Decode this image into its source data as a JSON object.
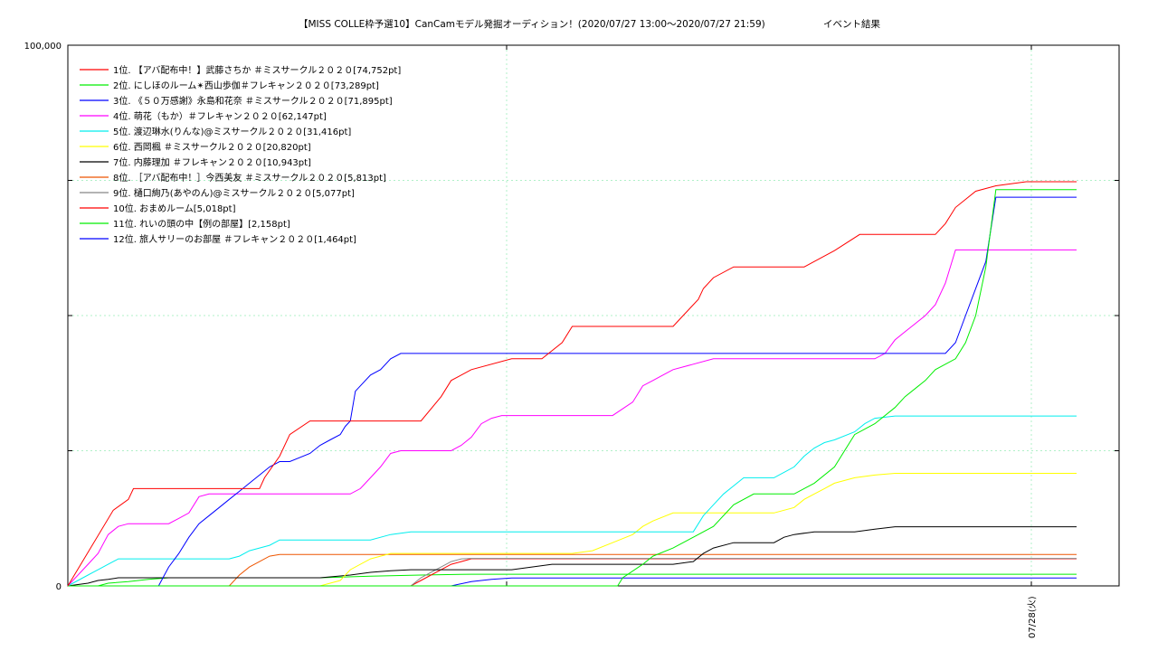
{
  "chart_data": {
    "type": "line",
    "title": "【MISS COLLE枠予選10】CanCamモデル発掘オーディション！(2020/07/27 13:00～2020/07/27 21:59)",
    "subtitle": "イベント結果",
    "xlabel": "",
    "ylabel": "",
    "ylim": [
      0,
      100000
    ],
    "y_tick_labels": [
      "0",
      "100,000"
    ],
    "x_tick_labels": [
      "07/28(火)"
    ],
    "grid": true,
    "legend_position": "top-left",
    "series": [
      {
        "name": "1位. 【アバ配布中！】武藤さちか ＃ミスサークル２０２０[74,752pt]",
        "color": "#ff0000",
        "points": [
          [
            0,
            0
          ],
          [
            0.045,
            14000
          ],
          [
            0.06,
            16000
          ],
          [
            0.065,
            18000
          ],
          [
            0.12,
            18000
          ],
          [
            0.16,
            18000
          ],
          [
            0.19,
            18000
          ],
          [
            0.195,
            20000
          ],
          [
            0.21,
            24000
          ],
          [
            0.22,
            28000
          ],
          [
            0.24,
            30500
          ],
          [
            0.26,
            30500
          ],
          [
            0.35,
            30500
          ],
          [
            0.37,
            35000
          ],
          [
            0.38,
            38000
          ],
          [
            0.4,
            40000
          ],
          [
            0.44,
            42000
          ],
          [
            0.47,
            42000
          ],
          [
            0.49,
            45000
          ],
          [
            0.5,
            48000
          ],
          [
            0.6,
            48000
          ],
          [
            0.61,
            50000
          ],
          [
            0.625,
            53000
          ],
          [
            0.63,
            55000
          ],
          [
            0.64,
            57000
          ],
          [
            0.66,
            59000
          ],
          [
            0.7,
            59000
          ],
          [
            0.73,
            59000
          ],
          [
            0.74,
            60000
          ],
          [
            0.76,
            62000
          ],
          [
            0.785,
            65000
          ],
          [
            0.82,
            65000
          ],
          [
            0.86,
            65000
          ],
          [
            0.87,
            67000
          ],
          [
            0.88,
            70000
          ],
          [
            0.9,
            73000
          ],
          [
            0.92,
            74000
          ],
          [
            0.95,
            74752
          ],
          [
            1.0,
            74752
          ]
        ]
      },
      {
        "name": "2位. にしほのルーム✴西山歩伽＃フレキャン２０２０[73,289pt]",
        "color": "#00ee00",
        "points": [
          [
            0,
            0
          ],
          [
            0.3,
            0
          ],
          [
            0.32,
            0
          ],
          [
            0.33,
            0
          ],
          [
            0.37,
            0
          ],
          [
            0.4,
            0
          ],
          [
            0.42,
            0
          ],
          [
            0.45,
            0
          ],
          [
            0.46,
            0
          ],
          [
            0.47,
            0
          ],
          [
            0.48,
            0
          ],
          [
            0.49,
            0
          ],
          [
            0.5,
            0
          ],
          [
            0.51,
            0
          ],
          [
            0.52,
            0
          ],
          [
            0.53,
            0
          ],
          [
            0.535,
            0
          ],
          [
            0.545,
            0
          ],
          [
            0.55,
            1500
          ],
          [
            0.57,
            4000
          ],
          [
            0.58,
            5500
          ],
          [
            0.6,
            7000
          ],
          [
            0.62,
            9000
          ],
          [
            0.64,
            11000
          ],
          [
            0.66,
            15000
          ],
          [
            0.68,
            17000
          ],
          [
            0.72,
            17000
          ],
          [
            0.74,
            19000
          ],
          [
            0.76,
            22000
          ],
          [
            0.78,
            28000
          ],
          [
            0.8,
            30000
          ],
          [
            0.82,
            33000
          ],
          [
            0.83,
            35000
          ],
          [
            0.85,
            38000
          ],
          [
            0.86,
            40000
          ],
          [
            0.88,
            42000
          ],
          [
            0.89,
            45000
          ],
          [
            0.9,
            50000
          ],
          [
            0.91,
            59000
          ],
          [
            0.92,
            73289
          ],
          [
            1.0,
            73289
          ]
        ]
      },
      {
        "name": "3位. 《５０万感謝》永島和花奈 ＃ミスサークル２０２０[71,895pt]",
        "color": "#0000ff",
        "points": [
          [
            0,
            0
          ],
          [
            0.09,
            0
          ],
          [
            0.1,
            3500
          ],
          [
            0.11,
            6000
          ],
          [
            0.12,
            9000
          ],
          [
            0.13,
            11500
          ],
          [
            0.14,
            13000
          ],
          [
            0.15,
            14500
          ],
          [
            0.16,
            16000
          ],
          [
            0.17,
            17500
          ],
          [
            0.18,
            19000
          ],
          [
            0.19,
            20500
          ],
          [
            0.2,
            22000
          ],
          [
            0.21,
            23000
          ],
          [
            0.22,
            23000
          ],
          [
            0.24,
            24500
          ],
          [
            0.25,
            26000
          ],
          [
            0.26,
            27000
          ],
          [
            0.27,
            28000
          ],
          [
            0.275,
            29500
          ],
          [
            0.28,
            30500
          ],
          [
            0.285,
            36000
          ],
          [
            0.3,
            39000
          ],
          [
            0.31,
            40000
          ],
          [
            0.32,
            42000
          ],
          [
            0.33,
            43000
          ],
          [
            0.35,
            43000
          ],
          [
            0.87,
            43000
          ],
          [
            0.88,
            45000
          ],
          [
            0.89,
            50000
          ],
          [
            0.9,
            55000
          ],
          [
            0.91,
            60000
          ],
          [
            0.92,
            71895
          ],
          [
            1.0,
            71895
          ]
        ]
      },
      {
        "name": "4位. 萌花（もか）＃フレキャン２０２０[62,147pt]",
        "color": "#ff00ff",
        "points": [
          [
            0,
            0
          ],
          [
            0.02,
            4000
          ],
          [
            0.03,
            6000
          ],
          [
            0.04,
            9500
          ],
          [
            0.05,
            11000
          ],
          [
            0.06,
            11500
          ],
          [
            0.1,
            11500
          ],
          [
            0.11,
            12500
          ],
          [
            0.12,
            13500
          ],
          [
            0.13,
            16500
          ],
          [
            0.14,
            17000
          ],
          [
            0.28,
            17000
          ],
          [
            0.29,
            18000
          ],
          [
            0.3,
            20000
          ],
          [
            0.31,
            22000
          ],
          [
            0.32,
            24500
          ],
          [
            0.33,
            25000
          ],
          [
            0.38,
            25000
          ],
          [
            0.39,
            26000
          ],
          [
            0.4,
            27500
          ],
          [
            0.41,
            30000
          ],
          [
            0.42,
            31000
          ],
          [
            0.43,
            31500
          ],
          [
            0.48,
            31500
          ],
          [
            0.54,
            31500
          ],
          [
            0.56,
            34000
          ],
          [
            0.57,
            37000
          ],
          [
            0.58,
            38000
          ],
          [
            0.59,
            39000
          ],
          [
            0.6,
            40000
          ],
          [
            0.62,
            41000
          ],
          [
            0.64,
            42000
          ],
          [
            0.65,
            42000
          ],
          [
            0.7,
            42000
          ],
          [
            0.8,
            42000
          ],
          [
            0.81,
            43000
          ],
          [
            0.82,
            45500
          ],
          [
            0.83,
            47000
          ],
          [
            0.84,
            48500
          ],
          [
            0.85,
            50000
          ],
          [
            0.86,
            52000
          ],
          [
            0.87,
            56000
          ],
          [
            0.88,
            62147
          ],
          [
            1.0,
            62147
          ]
        ]
      },
      {
        "name": "5位. 渡辺琳水(りんな)@ミスサークル２０２０[31,416pt]",
        "color": "#00eeee",
        "points": [
          [
            0,
            0
          ],
          [
            0.02,
            2000
          ],
          [
            0.03,
            3000
          ],
          [
            0.04,
            4000
          ],
          [
            0.05,
            5000
          ],
          [
            0.08,
            5000
          ],
          [
            0.16,
            5000
          ],
          [
            0.17,
            5500
          ],
          [
            0.18,
            6500
          ],
          [
            0.2,
            7500
          ],
          [
            0.21,
            8500
          ],
          [
            0.22,
            8500
          ],
          [
            0.3,
            8500
          ],
          [
            0.32,
            9500
          ],
          [
            0.34,
            10000
          ],
          [
            0.36,
            10000
          ],
          [
            0.5,
            10000
          ],
          [
            0.62,
            10000
          ],
          [
            0.63,
            13000
          ],
          [
            0.64,
            15000
          ],
          [
            0.65,
            17000
          ],
          [
            0.66,
            18500
          ],
          [
            0.67,
            20000
          ],
          [
            0.7,
            20000
          ],
          [
            0.71,
            21000
          ],
          [
            0.72,
            22000
          ],
          [
            0.73,
            24000
          ],
          [
            0.74,
            25500
          ],
          [
            0.75,
            26500
          ],
          [
            0.76,
            27000
          ],
          [
            0.78,
            28500
          ],
          [
            0.79,
            30000
          ],
          [
            0.8,
            31000
          ],
          [
            0.82,
            31416
          ],
          [
            1.0,
            31416
          ]
        ]
      },
      {
        "name": "6位. 西岡楓 ＃ミスサークル２０２０[20,820pt]",
        "color": "#ffff00",
        "points": [
          [
            0,
            0
          ],
          [
            0.25,
            0
          ],
          [
            0.27,
            1000
          ],
          [
            0.28,
            3000
          ],
          [
            0.3,
            5000
          ],
          [
            0.32,
            6000
          ],
          [
            0.35,
            6000
          ],
          [
            0.45,
            6000
          ],
          [
            0.48,
            6000
          ],
          [
            0.5,
            6000
          ],
          [
            0.52,
            6500
          ],
          [
            0.54,
            8000
          ],
          [
            0.56,
            9500
          ],
          [
            0.57,
            11000
          ],
          [
            0.58,
            12000
          ],
          [
            0.6,
            13500
          ],
          [
            0.62,
            13500
          ],
          [
            0.66,
            13500
          ],
          [
            0.7,
            13500
          ],
          [
            0.72,
            14500
          ],
          [
            0.73,
            16000
          ],
          [
            0.74,
            17000
          ],
          [
            0.75,
            18000
          ],
          [
            0.76,
            19000
          ],
          [
            0.77,
            19500
          ],
          [
            0.78,
            20000
          ],
          [
            0.8,
            20500
          ],
          [
            0.82,
            20820
          ],
          [
            1.0,
            20820
          ]
        ]
      },
      {
        "name": "7位. 内藤理加 ＃フレキャン２０２０[10,943pt]",
        "color": "#000000",
        "points": [
          [
            0,
            0
          ],
          [
            0.02,
            500
          ],
          [
            0.03,
            1000
          ],
          [
            0.04,
            1200
          ],
          [
            0.05,
            1500
          ],
          [
            0.1,
            1500
          ],
          [
            0.15,
            1500
          ],
          [
            0.2,
            1500
          ],
          [
            0.25,
            1500
          ],
          [
            0.28,
            2000
          ],
          [
            0.3,
            2500
          ],
          [
            0.32,
            2800
          ],
          [
            0.34,
            3000
          ],
          [
            0.4,
            3000
          ],
          [
            0.44,
            3000
          ],
          [
            0.46,
            3500
          ],
          [
            0.48,
            4000
          ],
          [
            0.52,
            4000
          ],
          [
            0.56,
            4000
          ],
          [
            0.6,
            4000
          ],
          [
            0.62,
            4500
          ],
          [
            0.63,
            6000
          ],
          [
            0.64,
            7000
          ],
          [
            0.66,
            8000
          ],
          [
            0.68,
            8000
          ],
          [
            0.7,
            8000
          ],
          [
            0.71,
            9000
          ],
          [
            0.72,
            9500
          ],
          [
            0.74,
            10000
          ],
          [
            0.76,
            10000
          ],
          [
            0.78,
            10000
          ],
          [
            0.8,
            10500
          ],
          [
            0.82,
            10943
          ],
          [
            1.0,
            10943
          ]
        ]
      },
      {
        "name": "8位. ［アバ配布中！］今西美友 ＃ミスサークル２０２０[5,813pt]",
        "color": "#ee5500",
        "points": [
          [
            0,
            0
          ],
          [
            0.16,
            0
          ],
          [
            0.17,
            2000
          ],
          [
            0.18,
            3500
          ],
          [
            0.19,
            4500
          ],
          [
            0.2,
            5500
          ],
          [
            0.21,
            5813
          ],
          [
            1.0,
            5813
          ]
        ]
      },
      {
        "name": "9位. 樋口絢乃(あやのん)@ミスサークル２０２０[5,077pt]",
        "color": "#888888",
        "points": [
          [
            0,
            0
          ],
          [
            0.34,
            0
          ],
          [
            0.35,
            1500
          ],
          [
            0.36,
            2500
          ],
          [
            0.37,
            3500
          ],
          [
            0.38,
            4500
          ],
          [
            0.39,
            5000
          ],
          [
            0.4,
            5077
          ],
          [
            1.0,
            5077
          ]
        ]
      },
      {
        "name": "10位. おまめルーム[5,018pt]",
        "color": "#ff0000",
        "points": [
          [
            0,
            0
          ],
          [
            0.34,
            0
          ],
          [
            0.35,
            1000
          ],
          [
            0.36,
            2000
          ],
          [
            0.37,
            3000
          ],
          [
            0.38,
            4000
          ],
          [
            0.39,
            4500
          ],
          [
            0.4,
            5018
          ],
          [
            1.0,
            5018
          ]
        ]
      },
      {
        "name": "11位. れいの頭の中【例の部屋】[2,158pt]",
        "color": "#00ee00",
        "points": [
          [
            0,
            0
          ],
          [
            0.03,
            0
          ],
          [
            0.04,
            500
          ],
          [
            0.06,
            800
          ],
          [
            0.08,
            1200
          ],
          [
            0.1,
            1500
          ],
          [
            0.15,
            1500
          ],
          [
            0.2,
            1500
          ],
          [
            0.25,
            1500
          ],
          [
            0.3,
            1800
          ],
          [
            0.35,
            2000
          ],
          [
            0.4,
            2158
          ],
          [
            1.0,
            2158
          ]
        ]
      },
      {
        "name": "12位. 旅人サリーのお部屋 ＃フレキャン２０２０[1,464pt]",
        "color": "#0000ff",
        "points": [
          [
            0,
            0
          ],
          [
            0.38,
            0
          ],
          [
            0.4,
            800
          ],
          [
            0.42,
            1200
          ],
          [
            0.44,
            1464
          ],
          [
            1.0,
            1464
          ]
        ]
      }
    ]
  }
}
